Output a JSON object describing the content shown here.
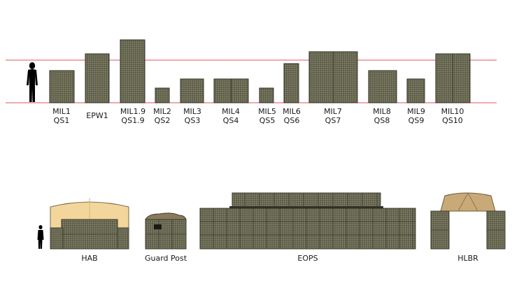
{
  "reference_lines_color": "#e0525e",
  "gabion_color": "#5a5a48",
  "gabion_mesh_color": "#7b7b62",
  "tent_color": "#f2d49a",
  "hlbr_roof_color": "#c9a977",
  "units": [
    {
      "code": "MIL1",
      "sub": "QS1"
    },
    {
      "code": "EPW1",
      "sub": ""
    },
    {
      "code": "MIL1.9",
      "sub": "QS1.9"
    },
    {
      "code": "MIL2",
      "sub": "QS2"
    },
    {
      "code": "MIL3",
      "sub": "QS3"
    },
    {
      "code": "MIL4",
      "sub": "QS4"
    },
    {
      "code": "MIL5",
      "sub": "QS5"
    },
    {
      "code": "MIL6",
      "sub": "QS6"
    },
    {
      "code": "MIL7",
      "sub": "QS7"
    },
    {
      "code": "MIL8",
      "sub": "QS8"
    },
    {
      "code": "MIL9",
      "sub": "QS9"
    },
    {
      "code": "MIL10",
      "sub": "QS10"
    }
  ],
  "structures": [
    {
      "label": "HAB"
    },
    {
      "label": "Guard Post"
    },
    {
      "label": "EOPS"
    },
    {
      "label": "HLBR"
    }
  ]
}
